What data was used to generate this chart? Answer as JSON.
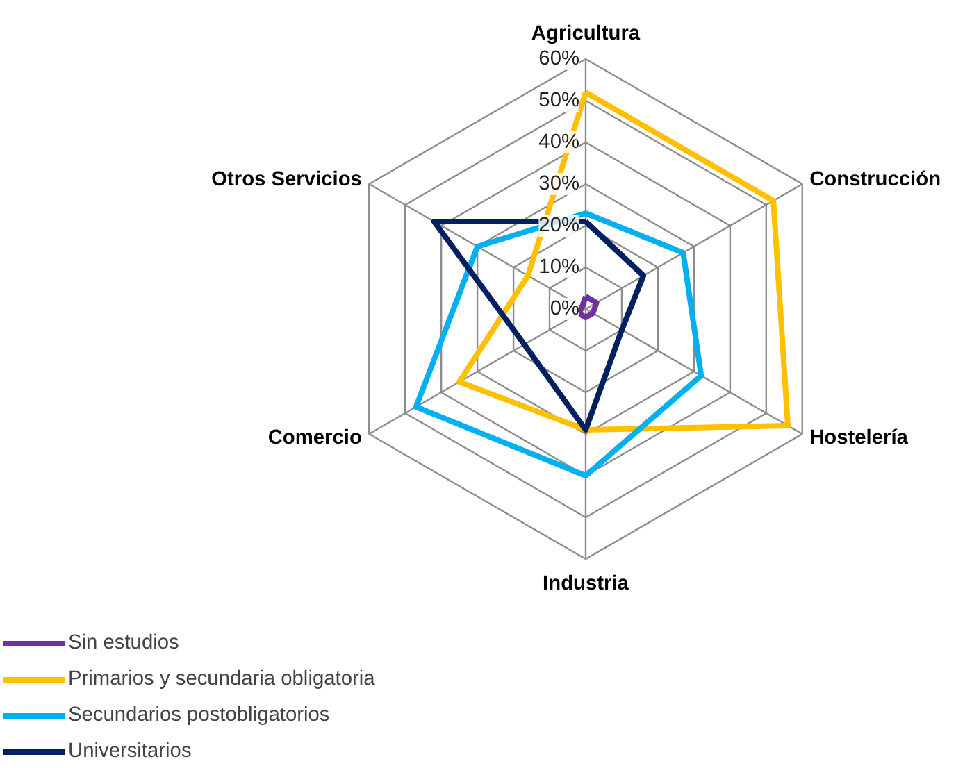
{
  "chart_data": {
    "type": "radar",
    "categories": [
      "Agricultura",
      "Construcción",
      "Hostelería",
      "Industria",
      "Comercio",
      "Otros Servicios"
    ],
    "ylim": [
      0,
      60
    ],
    "yticks": [
      {
        "value": 0,
        "label": "0%"
      },
      {
        "value": 10,
        "label": "10%"
      },
      {
        "value": 20,
        "label": "20%"
      },
      {
        "value": 30,
        "label": "30%"
      },
      {
        "value": 40,
        "label": "40%"
      },
      {
        "value": 50,
        "label": "50%"
      },
      {
        "value": 60,
        "label": "60%"
      }
    ],
    "grid": true,
    "legend": "bottom left",
    "line_style": "solid",
    "marker": "none",
    "series": [
      {
        "name": "Sin estudios",
        "color": "#7030a0",
        "values": [
          3,
          3,
          2,
          2,
          2,
          1
        ]
      },
      {
        "name": "Primarios y secundaria obligatoria",
        "color": "#ffc000",
        "values": [
          52,
          52,
          56,
          29,
          35,
          16
        ]
      },
      {
        "name": "Secundarios postobligatorios",
        "color": "#00b0f0",
        "values": [
          23,
          27,
          32,
          40,
          47,
          30
        ]
      },
      {
        "name": "Universitarios",
        "color": "#002060",
        "values": [
          21,
          16,
          10,
          29,
          17,
          42
        ]
      }
    ]
  }
}
